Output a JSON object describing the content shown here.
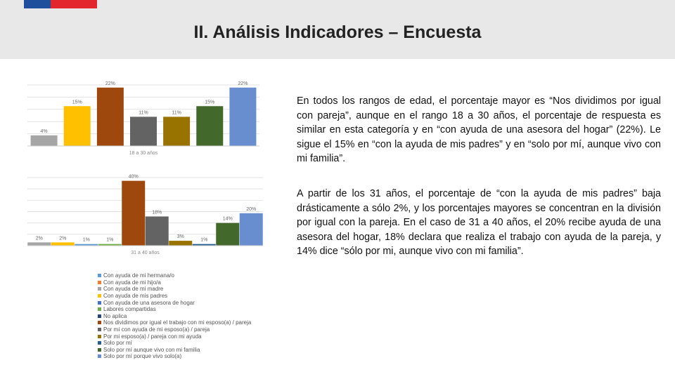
{
  "header": {
    "title": "II. Análisis Indicadores – Encuesta"
  },
  "colors": {
    "c1": "#a5a5a5",
    "c2": "#ffc000",
    "c3": "#5b9bd5",
    "c4": "#ed7d31",
    "c5": "#4472c4",
    "c6": "#70ad47",
    "c7": "#264478",
    "c8": "#9e480e",
    "c9": "#636363",
    "c10": "#997300",
    "c11": "#255e91",
    "c12": "#43682b",
    "c13": "#698ed0"
  },
  "text": {
    "p1": "En todos los rangos de edad, el porcentaje mayor es “Nos dividimos por igual con pareja”, aunque en el rango 18 a 30 años, el porcentaje de respuesta es similar en esta categoría y en “con ayuda de una asesora del hogar” (22%). Le sigue el 15% en “con la ayuda de mis padres” y en “solo por mí, aunque vivo con mi familia”.",
    "p2": "A partir de los 31 años, el porcentaje de “con la ayuda de mis padres” baja drásticamente a sólo 2%, y los porcentajes mayores se concentran en la división por igual con la pareja. En el caso de 31 a 40 años, el 20% recibe ayuda de una asesora del hogar, 18% declara que realiza el trabajo con ayuda de la pareja, y 14% dice “sólo por mi, aunque vivo con mi familia”."
  },
  "chart_data": [
    {
      "type": "bar",
      "xlabel": "18 a 30 años",
      "bars": [
        {
          "label": "4%",
          "value": 4,
          "color": "#a5a5a5"
        },
        {
          "label": "15%",
          "value": 15,
          "color": "#ffc000"
        },
        {
          "label": "22%",
          "value": 22,
          "color": "#9e480e"
        },
        {
          "label": "11%",
          "value": 11,
          "color": "#636363"
        },
        {
          "label": "11%",
          "value": 11,
          "color": "#997300"
        },
        {
          "label": "15%",
          "value": 15,
          "color": "#43682b"
        },
        {
          "label": "22%",
          "value": 22,
          "color": "#698ed0"
        }
      ]
    },
    {
      "type": "bar",
      "xlabel": "31 a 40 años",
      "bars": [
        {
          "label": "2%",
          "value": 2,
          "color": "#a5a5a5"
        },
        {
          "label": "2%",
          "value": 2,
          "color": "#ffc000"
        },
        {
          "label": "1%",
          "value": 1,
          "color": "#5b9bd5"
        },
        {
          "label": "1%",
          "value": 1,
          "color": "#70ad47"
        },
        {
          "label": "40%",
          "value": 40,
          "color": "#9e480e"
        },
        {
          "label": "18%",
          "value": 18,
          "color": "#636363"
        },
        {
          "label": "3%",
          "value": 3,
          "color": "#997300"
        },
        {
          "label": "1%",
          "value": 1,
          "color": "#255e91"
        },
        {
          "label": "14%",
          "value": 14,
          "color": "#43682b"
        },
        {
          "label": "20%",
          "value": 20,
          "color": "#698ed0"
        }
      ]
    }
  ],
  "legend": [
    {
      "label": "Con ayuda de mi hermana/o",
      "color": "#5b9bd5"
    },
    {
      "label": "Con ayuda de mi hijo/a",
      "color": "#ed7d31"
    },
    {
      "label": "Con ayuda de mi madre",
      "color": "#a5a5a5"
    },
    {
      "label": "Con ayuda de mis padres",
      "color": "#ffc000"
    },
    {
      "label": "Con ayuda de una asesora de hogar",
      "color": "#4472c4"
    },
    {
      "label": "Labores compartidas",
      "color": "#70ad47"
    },
    {
      "label": "No aplica",
      "color": "#264478"
    },
    {
      "label": "Nos dividimos por igual el trabajo con mi esposo(a) / pareja",
      "color": "#9e480e"
    },
    {
      "label": "Por mí con ayuda de mi esposo(a) / pareja",
      "color": "#636363"
    },
    {
      "label": "Por mi esposo(a) / pareja con mi ayuda",
      "color": "#997300"
    },
    {
      "label": "Solo por mí",
      "color": "#255e91"
    },
    {
      "label": "Solo por mí aunque vivo con mi familia",
      "color": "#43682b"
    },
    {
      "label": "Solo por mí porque vivo solo(a)",
      "color": "#698ed0"
    }
  ]
}
